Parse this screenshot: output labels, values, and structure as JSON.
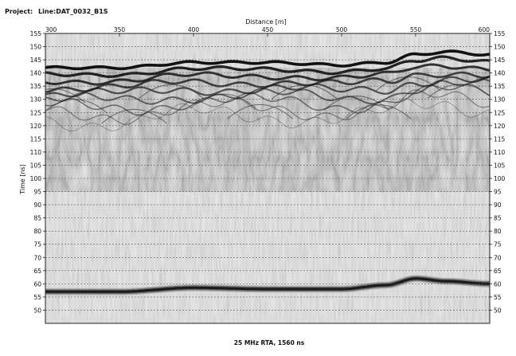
{
  "header": {
    "project_label": "Project:",
    "line_label": "Line:DAT_0032_B1S"
  },
  "chart_data": {
    "type": "radargram",
    "title": "Project:  Line:DAT_0032_B1S",
    "xlabel": "Distance [m]",
    "ylabel": "Time [ns]",
    "footer": "25 MHz RTA, 1560 ns",
    "xlim": [
      300,
      600
    ],
    "ylim": [
      45,
      155
    ],
    "x_ticks": [
      300,
      350,
      400,
      450,
      500,
      550,
      600
    ],
    "y_ticks": [
      50,
      55,
      60,
      65,
      70,
      75,
      80,
      85,
      90,
      95,
      100,
      105,
      110,
      115,
      120,
      125,
      130,
      135,
      140,
      145,
      150,
      155
    ],
    "grid": "horizontal dashed lines at every y tick",
    "surface_reflection": {
      "x": [
        300,
        350,
        400,
        450,
        500,
        530,
        550,
        570,
        600
      ],
      "y": [
        142,
        142,
        144,
        144,
        143,
        144,
        147,
        148,
        147
      ]
    },
    "deep_reflector": {
      "x": [
        300,
        350,
        400,
        450,
        500,
        530,
        550,
        570,
        600
      ],
      "y": [
        57,
        57,
        58.5,
        58,
        58,
        59.5,
        62,
        61,
        60
      ]
    },
    "colors": {
      "background": "#e8e8e8",
      "reflector": "#111111",
      "grid": "#555555"
    }
  }
}
